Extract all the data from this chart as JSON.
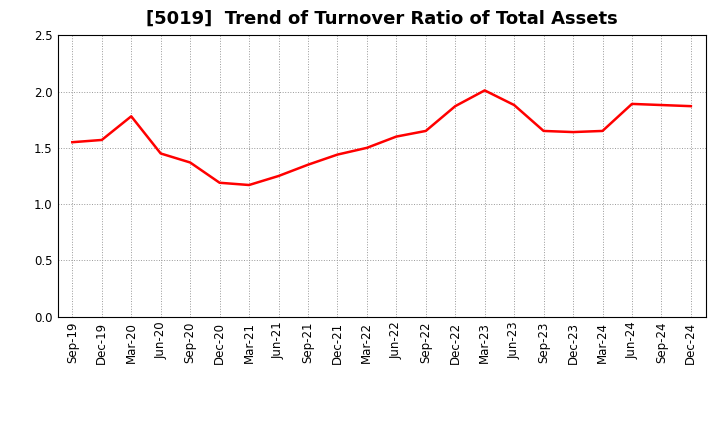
{
  "title": "[5019]  Trend of Turnover Ratio of Total Assets",
  "x_labels": [
    "Sep-19",
    "Dec-19",
    "Mar-20",
    "Jun-20",
    "Sep-20",
    "Dec-20",
    "Mar-21",
    "Jun-21",
    "Sep-21",
    "Dec-21",
    "Mar-22",
    "Jun-22",
    "Sep-22",
    "Dec-22",
    "Mar-23",
    "Jun-23",
    "Sep-23",
    "Dec-23",
    "Mar-24",
    "Jun-24",
    "Sep-24",
    "Dec-24"
  ],
  "y_values": [
    1.55,
    1.57,
    1.78,
    1.45,
    1.37,
    1.19,
    1.17,
    1.25,
    1.35,
    1.44,
    1.5,
    1.6,
    1.65,
    1.87,
    2.01,
    1.88,
    1.65,
    1.64,
    1.65,
    1.89,
    1.88,
    1.87
  ],
  "line_color": "#FF0000",
  "line_width": 1.8,
  "ylim": [
    0.0,
    2.5
  ],
  "yticks": [
    0.0,
    0.5,
    1.0,
    1.5,
    2.0,
    2.5
  ],
  "grid_color": "#999999",
  "grid_style": "dotted",
  "background_color": "#ffffff",
  "title_fontsize": 13,
  "tick_fontsize": 8.5
}
